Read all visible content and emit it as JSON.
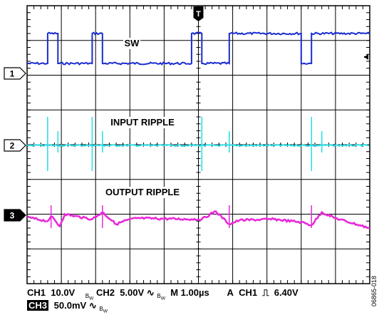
{
  "chart_data": {
    "type": "line",
    "time_division": "1.00µs",
    "horizontal_divisions": 10,
    "vertical_divisions": 8,
    "annotations": [
      "SW",
      "INPUT RIPPLE",
      "OUTPUT RIPPLE"
    ],
    "trigger_marker": "T",
    "series": [
      {
        "name": "CH1",
        "label": "SW",
        "scale": "10.0V",
        "color": "#1a2ccf",
        "ground_marker": "1",
        "x": [
          0,
          0.6,
          0.6,
          0.9,
          0.9,
          1.9,
          1.9,
          2.2,
          2.2,
          4.8,
          4.8,
          5.1,
          5.1,
          5.9,
          5.9,
          8.0,
          8.0,
          8.3,
          8.3,
          10
        ],
        "y": [
          1.0,
          1.0,
          4.0,
          4.0,
          1.0,
          1.0,
          4.0,
          4.0,
          1.0,
          1.0,
          4.0,
          4.0,
          1.0,
          1.0,
          4.0,
          4.0,
          1.0,
          1.0,
          4.0,
          4.0
        ]
      },
      {
        "name": "CH2",
        "label": "INPUT RIPPLE",
        "scale": "5.00V",
        "color": "#2ee0ea",
        "ground_marker": "2",
        "spike_times": [
          0.6,
          0.9,
          1.9,
          2.2,
          5.1,
          5.9,
          8.3,
          8.6
        ],
        "baseline": 0
      },
      {
        "name": "CH3",
        "label": "OUTPUT RIPPLE",
        "scale": "50.0mV",
        "color": "#e82ad8",
        "ground_marker": "3",
        "x": [
          0,
          0.6,
          0.7,
          0.95,
          1.1,
          1.9,
          2.2,
          2.6,
          2.9,
          3.2,
          4.8,
          5.1,
          5.5,
          5.9,
          6.2,
          7.2,
          8.0,
          8.3,
          8.6,
          9.0,
          10
        ],
        "y": [
          -0.2,
          -0.6,
          -0.1,
          -1.1,
          0.1,
          -0.4,
          0.3,
          -0.9,
          -0.5,
          -0.3,
          -0.4,
          -0.4,
          0.4,
          -0.9,
          -0.5,
          -0.4,
          -0.7,
          -1.0,
          0.3,
          -0.3,
          -1.3
        ]
      }
    ]
  },
  "status_bar": {
    "ch1": "CH1",
    "ch1_scale": "10.0V",
    "bw1": "B",
    "bw1_sub": "W",
    "ch2": "CH2",
    "ch2_scale": "5.00V",
    "ch2_coupling_symbol": "∿",
    "bw2": "B",
    "bw2_sub": "W",
    "timebase": "M 1.00µs",
    "trigger_mode": "A",
    "trigger_channel": "CH1",
    "trigger_slope_symbol": "⎍",
    "trigger_level": "6.40V",
    "ch3": "CH3",
    "ch3_scale": "50.0mV",
    "ch3_coupling_symbol": "∿",
    "bw3": "B",
    "bw3_sub": "W"
  },
  "figure_id": "06865-018"
}
